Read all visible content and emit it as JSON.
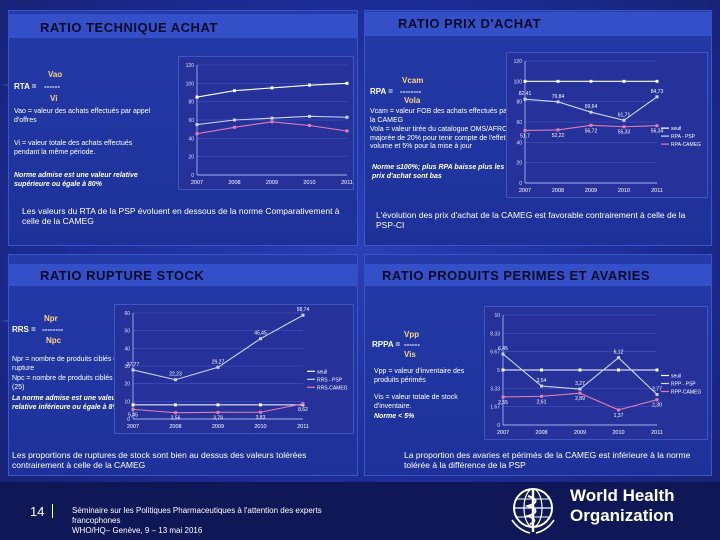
{
  "panels": {
    "rta": {
      "title": "RATIO TECHNIQUE  ACHAT",
      "formula_left": "RTA  =",
      "num": "Vao",
      "dash": "------",
      "den": "Vi",
      "desc1": "Vao  =  valeur des achats effectués par appel d'offres",
      "desc2": "Vi   =   valeur  totale des achats effectués  pendant  la  même période.",
      "norm": "Norme admise est une valeur relative supérieure ou égale à 80%",
      "conclusion": "Les valeurs du RTA de la PSP évoluent en dessous de la norme Comparativement à celle de la CAMEG"
    },
    "rpa": {
      "title": "RATIO  PRIX  D'ACHAT",
      "formula_left": "RPA  =",
      "num": "Vcam",
      "dash": "--------",
      "den": "Vola",
      "desc1": "Vcam  =  valeur FOB des achats effectués par la CAMEG",
      "desc2": "Vola  =  valeur tirée du catalogue OMS/AFRO majorée de 20% pour tenir compte de l'effet volume et  5% pour la mise à jour",
      "norm": "Norme ≤100%; plus RPA baisse plus les prix d'achat sont bas",
      "conclusion": "L'évolution  des prix d'achat de la CAMEG est favorable contrairement à celle de la PSP-CI"
    },
    "rrs": {
      "title": "RATIO RUPTURE  STOCK",
      "formula_left": "RRS  =",
      "num": "Npr",
      "dash": "--------",
      "den": "Npc",
      "desc1": "Npr  =  nombre de produits ciblés en rupture",
      "desc2": "Npc  =  nombre de produits ciblés (25)",
      "norm": "La norme admise est une valeur relative inférieure ou égale à 8%.",
      "conclusion": "Les proportions de ruptures de stock sont bien au dessus des valeurs tolérées contrairement à celle de la CAMEG"
    },
    "rppa": {
      "title": "RATIO PRODUITS PERIMES ET AVARIES",
      "formula_left": "RPPA  =",
      "num": "Vpp",
      "dash": "------",
      "den": "Vis",
      "desc1": "Vpp  =  valeur d'inventaire des produits périmés",
      "desc2": "Vis  =  valeur totale de stock d'inventaire.",
      "norm": "Norme < 5%",
      "conclusion": "La proportion des avaries et périmés de la CAMEG est inférieure à la norme tolérée à la différence de la PSP"
    }
  },
  "chart_data": [
    {
      "type": "line",
      "title": "",
      "x": [
        "2007",
        "2008",
        "2009",
        "2010",
        "2011"
      ],
      "ylim": [
        0,
        120
      ],
      "series": [
        {
          "name": "",
          "values": [
            85,
            92,
            95,
            98,
            100
          ]
        },
        {
          "name": "",
          "values": [
            55,
            60,
            62,
            64,
            63
          ]
        },
        {
          "name": "",
          "values": [
            45,
            52,
            58,
            54,
            48
          ]
        }
      ],
      "legend_placement": "right"
    },
    {
      "type": "line",
      "title": "",
      "x": [
        "2007",
        "2008",
        "2009",
        "2010",
        "2011"
      ],
      "ylim": [
        0,
        120
      ],
      "series": [
        {
          "name": "seuil",
          "values": [
            100,
            100,
            100,
            100,
            100
          ]
        },
        {
          "name": "RPA - PSP",
          "values": [
            82.41,
            79.84,
            69.64,
            61.71,
            84.73
          ]
        },
        {
          "name": "RPA-CAMEG",
          "values": [
            51.7,
            52.22,
            56.72,
            55.33,
            56.34
          ]
        }
      ],
      "labels_psp": [
        "82,41",
        "79,84",
        "69,64",
        "61,71",
        "84,73"
      ],
      "labels_cameg": [
        "51,7",
        "52,22",
        "56,72",
        "55,33",
        "56,34"
      ],
      "legend_placement": "right"
    },
    {
      "type": "line",
      "title": "",
      "x": [
        "2007",
        "2008",
        "2009",
        "2010",
        "2011"
      ],
      "ylim": [
        0,
        60
      ],
      "series": [
        {
          "name": "seuil",
          "values": [
            8,
            8,
            8,
            8,
            8
          ]
        },
        {
          "name": "RRS - PSP",
          "values": [
            27.77,
            22.23,
            29.27,
            45.45,
            58.74
          ]
        },
        {
          "name": "RRS-CAMEG",
          "values": [
            5.45,
            3.56,
            3.78,
            3.83,
            8.62
          ]
        }
      ],
      "labels_psp": [
        "27,77",
        "22,23",
        "29,27",
        "45,45",
        "58,74"
      ],
      "labels_cameg": [
        "5,45",
        "3,56",
        "3,78",
        "3,83",
        "8,62"
      ],
      "legend_placement": "right"
    },
    {
      "type": "line",
      "title": "",
      "x": [
        "2007",
        "2008",
        "2009",
        "2010",
        "2011"
      ],
      "ylim": [
        0,
        10
      ],
      "series": [
        {
          "name": "seuil",
          "values": [
            5,
            5,
            5,
            5,
            5
          ]
        },
        {
          "name": "RPP - PSP",
          "values": [
            6.45,
            3.54,
            3.27,
            6.12,
            2.77
          ]
        },
        {
          "name": "RPP-CAMEG",
          "values": [
            2.55,
            2.61,
            2.89,
            1.37,
            2.3
          ]
        }
      ],
      "labels_psp": [
        "6,45",
        "3,54",
        "3,27",
        "6,12",
        "2,77"
      ],
      "labels_cameg": [
        "2,55",
        "2,61",
        "2,89",
        "1,37",
        "2,30"
      ],
      "legend_placement": "right"
    }
  ],
  "footer": {
    "page_number": "14",
    "line1": "Séminaire sur les Politiques Pharmaceutiques à l'attention des experts",
    "line2": "francophones",
    "line3": "WHO/HQ– Genève, 9 – 13 mai 2016",
    "org_line1": "World Health",
    "org_line2": "Organization"
  },
  "colors": {
    "background": "#1d2d98",
    "title_bar": "#4a66d6",
    "series_psp": "#c8d4ff",
    "series_cameg": "#e07bb5",
    "series_seuil": "#ffffff"
  }
}
